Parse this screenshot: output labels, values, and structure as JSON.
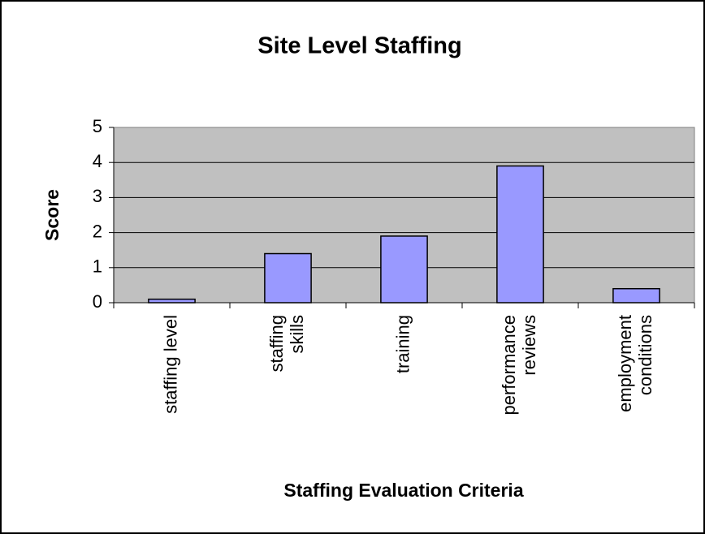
{
  "chart_data": {
    "type": "bar",
    "title": "Site Level Staffing",
    "x_label": "Staffing Evaluation Criteria",
    "y_label": "Score",
    "categories": [
      "staffing level",
      "staffing\nskills",
      "training",
      "performance\nreviews",
      "employment\nconditions"
    ],
    "values": [
      0.1,
      1.4,
      1.9,
      3.9,
      0.4
    ],
    "color": "#9999ff",
    "ylim": [
      0,
      5
    ],
    "yticks": [
      0,
      1,
      2,
      3,
      4,
      5
    ],
    "grid": true
  }
}
